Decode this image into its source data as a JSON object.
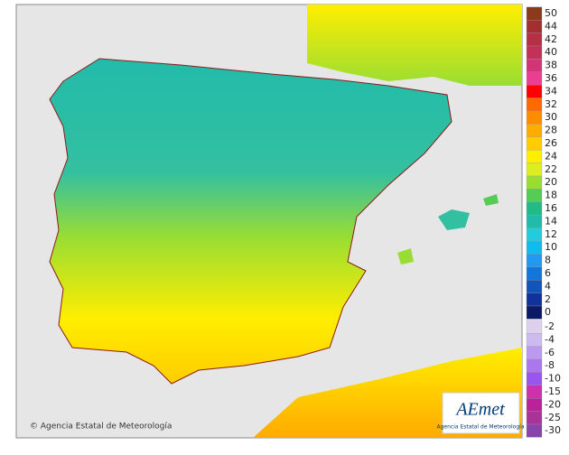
{
  "map": {
    "credit": "© Agencia Estatal de Meteorología",
    "logo": {
      "name": "AEmet",
      "subtitle": "Agencia Estatal de Meteorología"
    },
    "legend_positive": [
      {
        "label": "50",
        "color": "#8b3a1a"
      },
      {
        "label": "44",
        "color": "#a33030"
      },
      {
        "label": "42",
        "color": "#b33045"
      },
      {
        "label": "40",
        "color": "#c33058"
      },
      {
        "label": "38",
        "color": "#d33475"
      },
      {
        "label": "36",
        "color": "#ec3d95"
      },
      {
        "label": "34",
        "color": "#ff0000"
      },
      {
        "label": "32",
        "color": "#ff6a00"
      },
      {
        "label": "30",
        "color": "#ff8c00"
      },
      {
        "label": "28",
        "color": "#ffac00"
      },
      {
        "label": "26",
        "color": "#ffcc00"
      },
      {
        "label": "24",
        "color": "#ffee00"
      },
      {
        "label": "22",
        "color": "#dcee22"
      },
      {
        "label": "20",
        "color": "#99dd33"
      },
      {
        "label": "18",
        "color": "#55cc55"
      },
      {
        "label": "16",
        "color": "#22bb88"
      },
      {
        "label": "14",
        "color": "#22bbaa"
      },
      {
        "label": "12",
        "color": "#22ccdd"
      },
      {
        "label": "10",
        "color": "#11bbee"
      },
      {
        "label": "8",
        "color": "#2299ee"
      },
      {
        "label": "6",
        "color": "#1177dd"
      },
      {
        "label": "4",
        "color": "#1155bb"
      },
      {
        "label": "2",
        "color": "#113399"
      },
      {
        "label": "0",
        "color": "#0a1a66"
      }
    ],
    "legend_negative": [
      {
        "label": "-2",
        "color": "#ddd0ee"
      },
      {
        "label": "-4",
        "color": "#ccbbee"
      },
      {
        "label": "-6",
        "color": "#bb99ee"
      },
      {
        "label": "-8",
        "color": "#aa77ee"
      },
      {
        "label": "-10",
        "color": "#9955ee"
      },
      {
        "label": "-15",
        "color": "#cc33aa"
      },
      {
        "label": "-20",
        "color": "#bb2299"
      },
      {
        "label": "-25",
        "color": "#aa3399"
      },
      {
        "label": "-30",
        "color": "#8844aa"
      }
    ]
  }
}
